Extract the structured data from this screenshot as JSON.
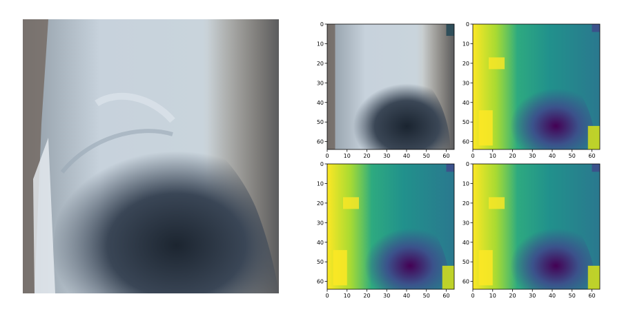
{
  "figure": {
    "main_image": "photo-closeup-dark-curved-object-gray-blue"
  },
  "chart_data": [
    {
      "type": "heatmap",
      "colormap": "rgb-downsampled-photo",
      "xticks": [
        0,
        10,
        20,
        30,
        40,
        50,
        60
      ],
      "yticks": [
        0,
        10,
        20,
        30,
        40,
        50,
        60
      ],
      "xlim": [
        0,
        64
      ],
      "ylim": [
        64,
        0
      ]
    },
    {
      "type": "heatmap",
      "colormap": "viridis",
      "xticks": [
        0,
        10,
        20,
        30,
        40,
        50,
        60
      ],
      "yticks": [
        0,
        10,
        20,
        30,
        40,
        50,
        60
      ],
      "xlim": [
        0,
        64
      ],
      "ylim": [
        64,
        0
      ]
    },
    {
      "type": "heatmap",
      "colormap": "viridis",
      "xticks": [
        0,
        10,
        20,
        30,
        40,
        50,
        60
      ],
      "yticks": [
        0,
        10,
        20,
        30,
        40,
        50,
        60
      ],
      "xlim": [
        0,
        64
      ],
      "ylim": [
        64,
        0
      ]
    },
    {
      "type": "heatmap",
      "colormap": "viridis",
      "xticks": [
        0,
        10,
        20,
        30,
        40,
        50,
        60
      ],
      "yticks": [
        0,
        10,
        20,
        30,
        40,
        50,
        60
      ],
      "xlim": [
        0,
        64
      ],
      "ylim": [
        64,
        0
      ]
    }
  ]
}
